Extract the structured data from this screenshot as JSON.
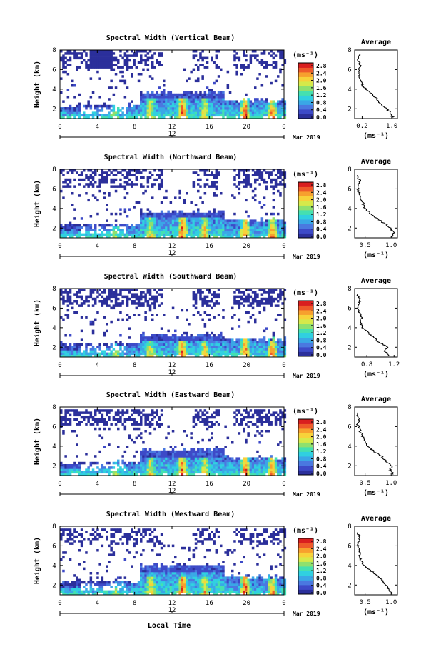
{
  "chart_data": {
    "type": "heatmap",
    "xlabel": "Local Time",
    "x_ticks": [
      "0",
      "4",
      "8",
      "12",
      "16",
      "20",
      "0"
    ],
    "x_range": [
      0,
      24
    ],
    "date_tick": "12",
    "date_label": "Mar 2019",
    "ylabel": "Height (km)",
    "y_ticks": [
      "2",
      "4",
      "6",
      "8"
    ],
    "y_range": [
      1,
      8
    ],
    "colorbar": {
      "unit": "(ms⁻¹)",
      "ticks": [
        "2.8",
        "2.4",
        "2.0",
        "1.6",
        "1.2",
        "0.8",
        "0.4",
        "0.0"
      ],
      "range": [
        0,
        3.0
      ],
      "colors": [
        "#2b2f9b",
        "#3d4ac8",
        "#4a78e0",
        "#3aa7e6",
        "#30d0e0",
        "#45e0b0",
        "#8fe06e",
        "#d6e94a",
        "#f7d23a",
        "#f7a02e",
        "#ee5a2a",
        "#d91f1f"
      ]
    },
    "panels": [
      {
        "title": "Spectral Width (Vertical Beam)",
        "avg_title": "Average",
        "avg_xunit": "(ms⁻¹)",
        "avg_xticks": [
          "0.2",
          "1.0"
        ],
        "avg_xrange": [
          0.0,
          1.15
        ],
        "avg_yticks": [
          "2",
          "4",
          "6",
          "8"
        ],
        "avg_profile": [
          [
            1.02,
            1.1
          ],
          [
            0.98,
            1.5
          ],
          [
            0.88,
            1.9
          ],
          [
            0.72,
            2.4
          ],
          [
            0.62,
            2.9
          ],
          [
            0.48,
            3.4
          ],
          [
            0.34,
            3.9
          ],
          [
            0.22,
            4.3
          ],
          [
            0.2,
            4.7
          ],
          [
            0.15,
            5.2
          ],
          [
            0.12,
            5.8
          ],
          [
            0.16,
            6.4
          ],
          [
            0.1,
            7.0
          ],
          [
            0.12,
            7.6
          ]
        ]
      },
      {
        "title": "Spectral Width (Northward Beam)",
        "avg_title": "Average",
        "avg_xunit": "(ms⁻¹)",
        "avg_xticks": [
          "0.5",
          "1.0"
        ],
        "avg_xrange": [
          0.3,
          1.12
        ],
        "avg_yticks": [
          "2",
          "4",
          "6",
          "8"
        ],
        "avg_profile": [
          [
            1.02,
            1.1
          ],
          [
            1.05,
            1.6
          ],
          [
            0.98,
            2.0
          ],
          [
            0.86,
            2.5
          ],
          [
            0.72,
            3.0
          ],
          [
            0.6,
            3.5
          ],
          [
            0.5,
            4.0
          ],
          [
            0.46,
            4.5
          ],
          [
            0.42,
            5.0
          ],
          [
            0.38,
            5.6
          ],
          [
            0.36,
            6.2
          ],
          [
            0.4,
            6.8
          ],
          [
            0.35,
            7.4
          ]
        ]
      },
      {
        "title": "Spectral Width (Southward Beam)",
        "avg_title": "Average",
        "avg_xunit": "(ms⁻¹)",
        "avg_xticks": [
          "0.8",
          "1.2"
        ],
        "avg_xrange": [
          0.62,
          1.25
        ],
        "avg_yticks": [
          "2",
          "4",
          "6",
          "8"
        ],
        "avg_profile": [
          [
            1.15,
            1.1
          ],
          [
            1.05,
            1.6
          ],
          [
            1.1,
            2.0
          ],
          [
            0.98,
            2.5
          ],
          [
            0.9,
            3.0
          ],
          [
            0.82,
            3.5
          ],
          [
            0.74,
            4.0
          ],
          [
            0.7,
            4.5
          ],
          [
            0.72,
            5.0
          ],
          [
            0.68,
            5.6
          ],
          [
            0.66,
            6.2
          ],
          [
            0.7,
            6.8
          ],
          [
            0.66,
            7.4
          ]
        ]
      },
      {
        "title": "Spectral Width (Eastward Beam)",
        "avg_title": "Average",
        "avg_xunit": "(ms⁻¹)",
        "avg_xticks": [
          "0.5",
          "1.0"
        ],
        "avg_xrange": [
          0.3,
          1.12
        ],
        "avg_yticks": [
          "2",
          "4",
          "6",
          "8"
        ],
        "avg_profile": [
          [
            1.05,
            1.1
          ],
          [
            0.98,
            1.5
          ],
          [
            1.02,
            2.0
          ],
          [
            0.9,
            2.5
          ],
          [
            0.8,
            3.0
          ],
          [
            0.66,
            3.5
          ],
          [
            0.56,
            4.0
          ],
          [
            0.5,
            4.5
          ],
          [
            0.45,
            5.0
          ],
          [
            0.4,
            5.6
          ],
          [
            0.36,
            6.2
          ],
          [
            0.38,
            6.8
          ],
          [
            0.34,
            7.4
          ]
        ]
      },
      {
        "title": "Spectral Width (Westward Beam)",
        "avg_title": "Average",
        "avg_xunit": "(ms⁻¹)",
        "avg_xticks": [
          "0.5",
          "1.0"
        ],
        "avg_xrange": [
          0.3,
          1.12
        ],
        "avg_yticks": [
          "2",
          "4",
          "6",
          "8"
        ],
        "avg_profile": [
          [
            1.02,
            1.1
          ],
          [
            0.96,
            1.6
          ],
          [
            0.9,
            2.0
          ],
          [
            0.82,
            2.5
          ],
          [
            0.72,
            3.0
          ],
          [
            0.6,
            3.5
          ],
          [
            0.48,
            4.0
          ],
          [
            0.42,
            4.5
          ],
          [
            0.4,
            5.0
          ],
          [
            0.38,
            5.6
          ],
          [
            0.36,
            6.2
          ],
          [
            0.4,
            6.8
          ],
          [
            0.36,
            7.4
          ]
        ]
      }
    ]
  }
}
